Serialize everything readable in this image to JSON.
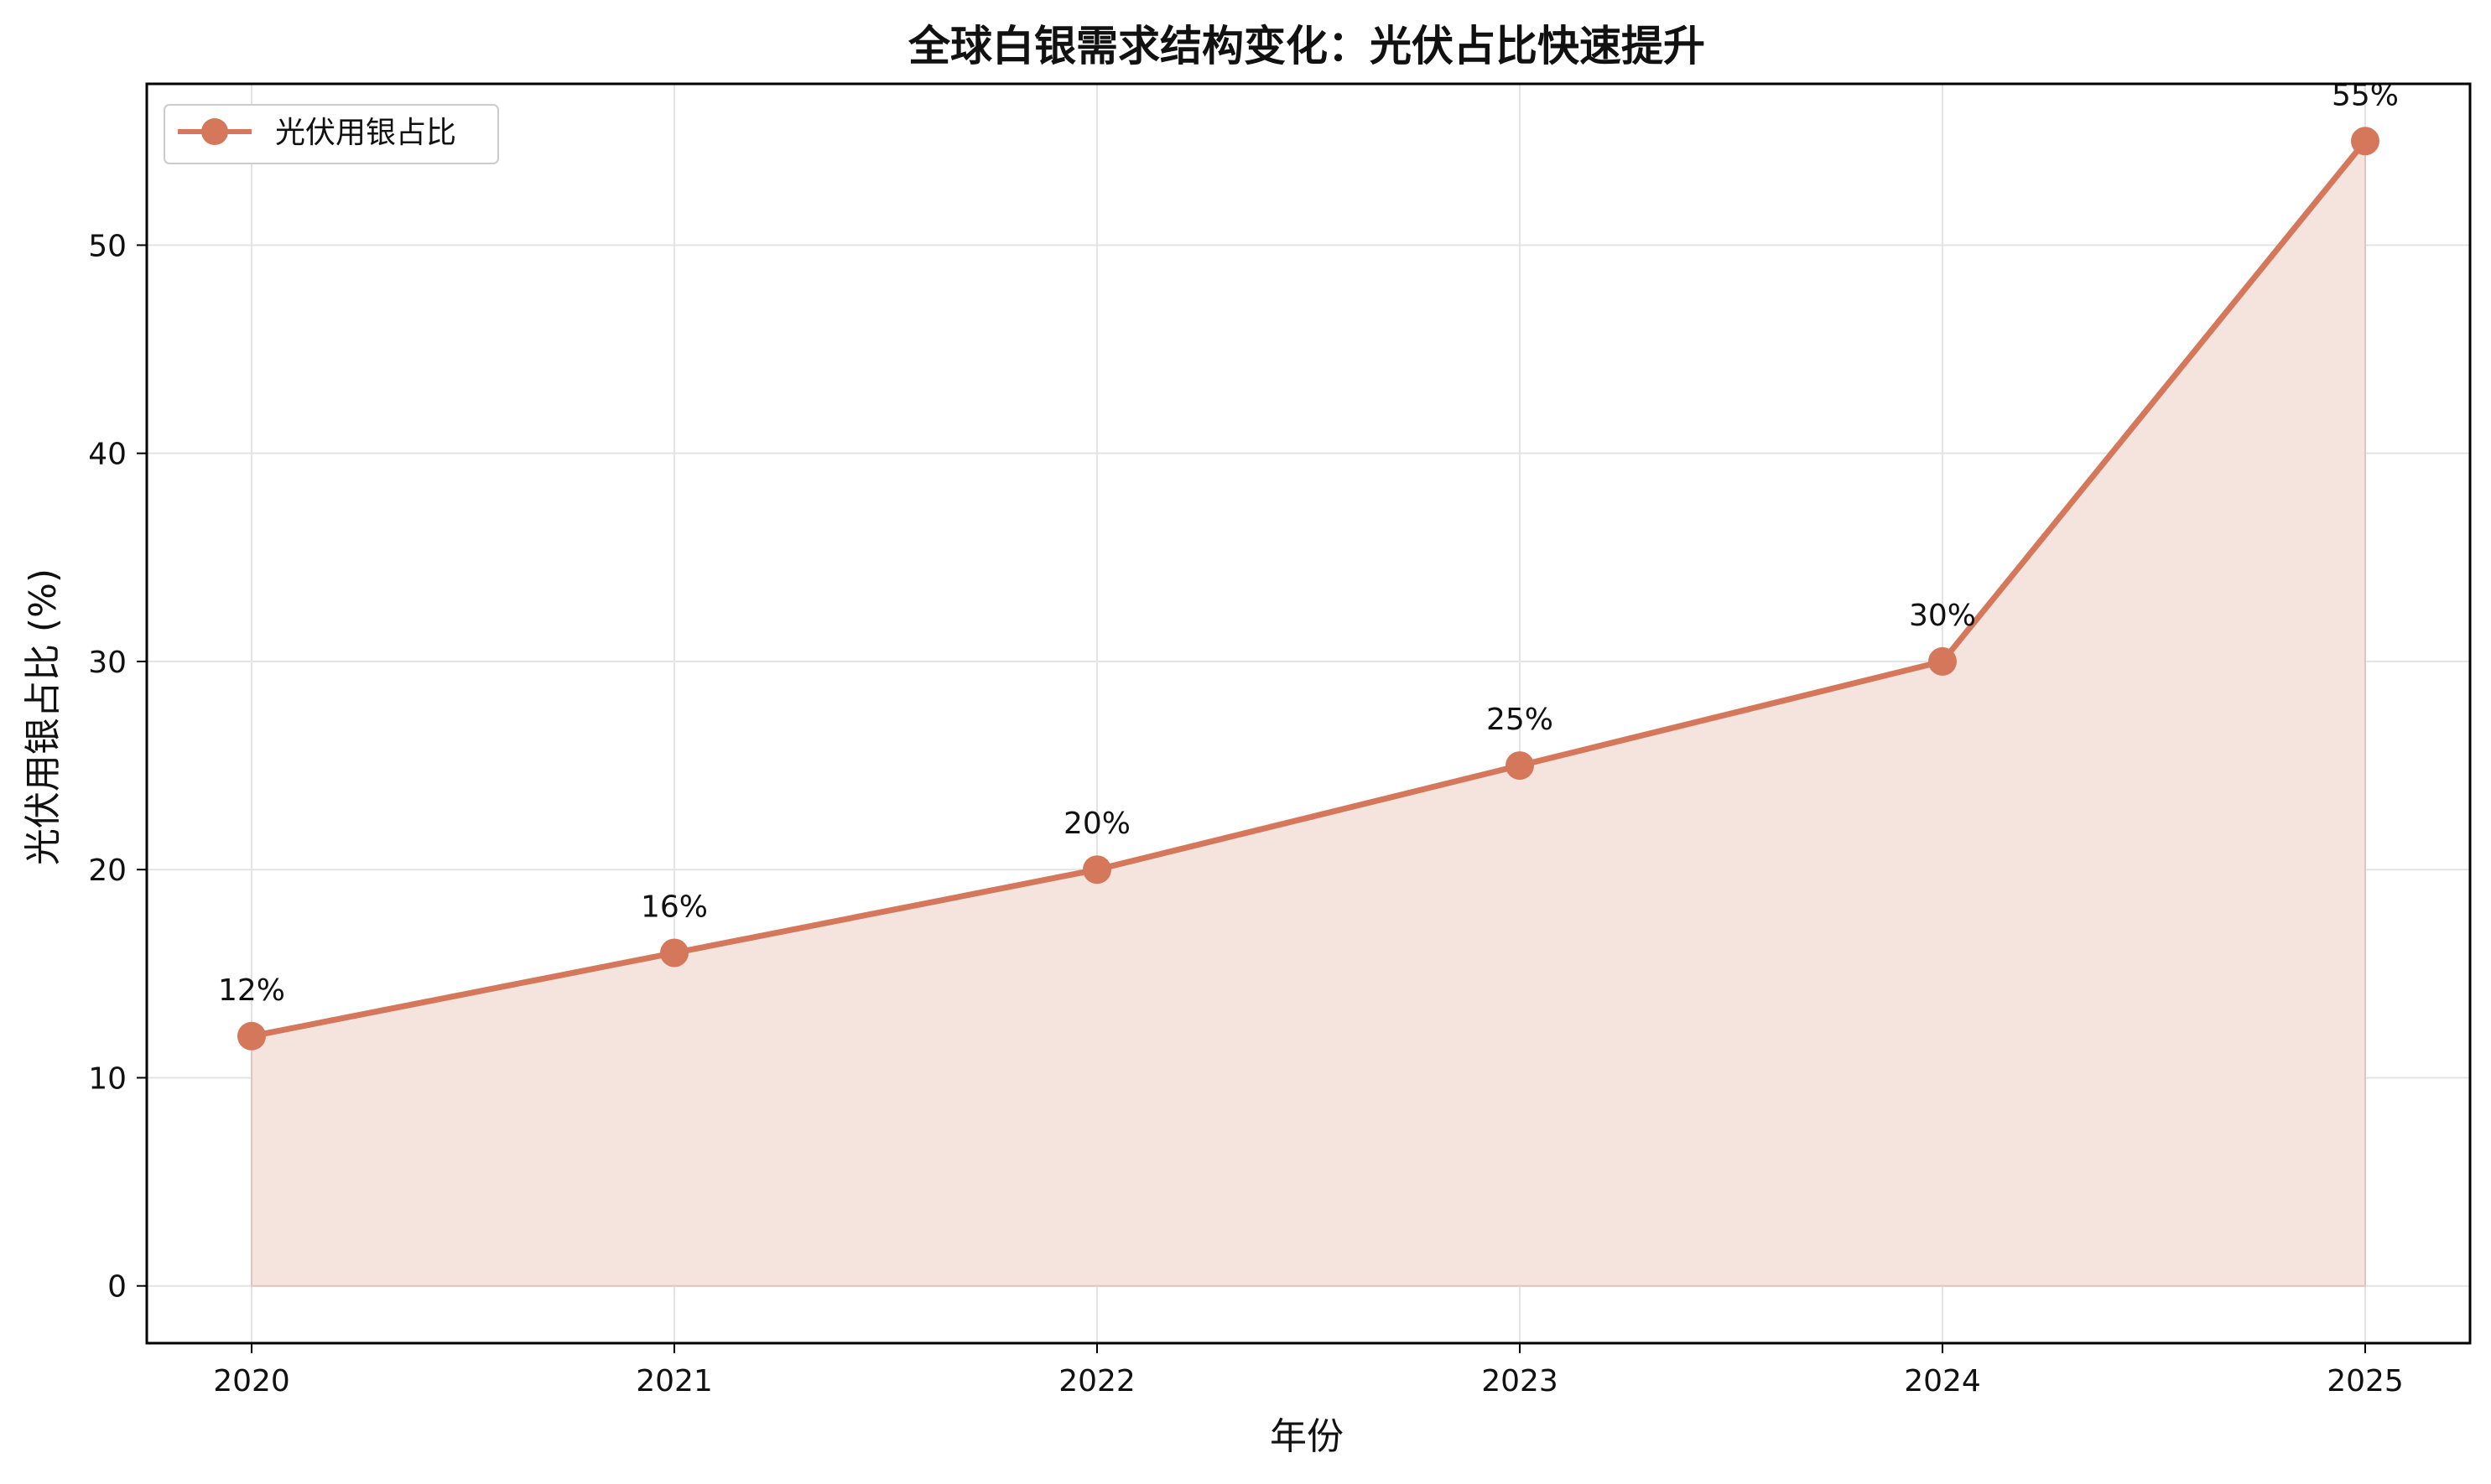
{
  "chart_data": {
    "type": "area",
    "title": "全球白银需求结构变化：光伏占比快速提升",
    "xlabel": "年份",
    "ylabel": "光伏用银占比 (%)",
    "categories": [
      "2020",
      "2021",
      "2022",
      "2023",
      "2024",
      "2025"
    ],
    "series": [
      {
        "name": "光伏用银占比",
        "values": [
          12,
          16,
          20,
          25,
          30,
          55
        ],
        "labels": [
          "12%",
          "16%",
          "20%",
          "25%",
          "30%",
          "55%"
        ]
      }
    ],
    "yticks": [
      "0",
      "10",
      "20",
      "30",
      "40",
      "50"
    ],
    "ylim": [
      -2.75,
      57.75
    ],
    "grid": true,
    "legend_position": "top-left",
    "colors": {
      "line": "#d4775a",
      "fill": "#f5e3de",
      "grid": "#e3e3e3",
      "axis": "#000000"
    }
  }
}
